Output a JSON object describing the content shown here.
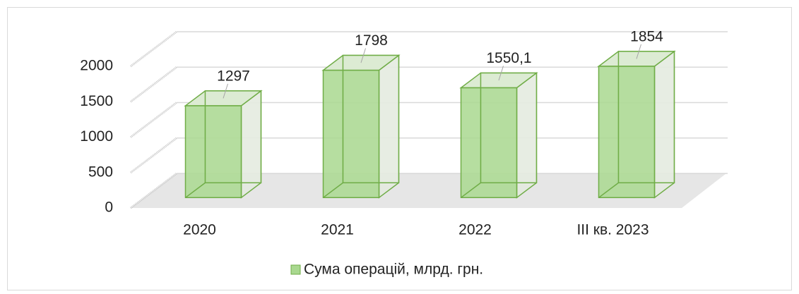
{
  "chart_data": {
    "type": "bar3d",
    "categories": [
      "2020",
      "2021",
      "2022",
      "III кв. 2023"
    ],
    "series": [
      {
        "name": "Сума операцій, млрд. грн.",
        "color": "#a9d88f",
        "values": [
          1297,
          1798,
          1550.1,
          1854
        ],
        "value_labels": [
          "1297",
          "1798",
          "1550,1",
          "1854"
        ]
      }
    ],
    "ylim": [
      0,
      2000
    ],
    "yticks": [
      0,
      500,
      1000,
      1500,
      2000
    ],
    "grid": true,
    "legend": "bottom"
  }
}
